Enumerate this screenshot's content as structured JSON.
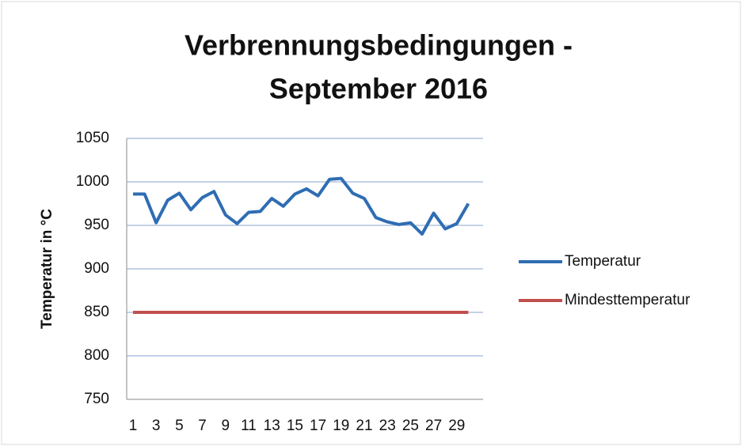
{
  "chart_data": {
    "type": "line",
    "title": [
      "Verbrennungsbedingungen -",
      "September 2016"
    ],
    "y_label": "Temperatur in °C",
    "categories": [
      1,
      null,
      3,
      null,
      5,
      null,
      7,
      null,
      9,
      null,
      11,
      null,
      13,
      null,
      15,
      null,
      17,
      null,
      19,
      null,
      21,
      null,
      23,
      null,
      25,
      null,
      27,
      null,
      29,
      null
    ],
    "series": [
      {
        "name": "Temperatur",
        "color": "#2f6db3",
        "values": [
          986,
          986,
          953,
          979,
          987,
          968,
          982,
          989,
          962,
          952,
          965,
          966,
          981,
          972,
          986,
          992,
          984,
          1003,
          1004,
          987,
          981,
          959,
          954,
          951,
          953,
          940,
          964,
          946,
          952,
          975
        ]
      },
      {
        "name": "Mindesttemperatur",
        "color": "#c0504d",
        "values": [
          850,
          850,
          850,
          850,
          850,
          850,
          850,
          850,
          850,
          850,
          850,
          850,
          850,
          850,
          850,
          850,
          850,
          850,
          850,
          850,
          850,
          850,
          850,
          850,
          850,
          850,
          850,
          850,
          850,
          850
        ]
      }
    ],
    "ylim": [
      750,
      1050
    ],
    "yticks": [
      750,
      800,
      850,
      900,
      950,
      1000,
      1050
    ],
    "grid": true,
    "legend": "right"
  }
}
